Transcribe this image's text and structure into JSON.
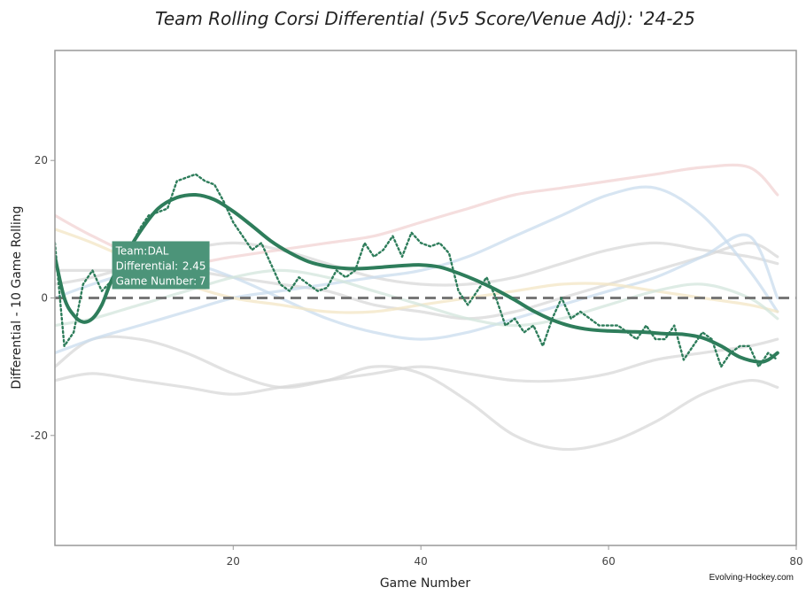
{
  "colors": {
    "team": "#2e7d5b",
    "zero_line": "#777777",
    "plot_border": "#999999",
    "tooltip_bg": "#4c9479",
    "ghost": [
      "#d8d8d8",
      "#c9dcee",
      "#f2d3d3",
      "#f3e6c4",
      "#d3e6dc"
    ]
  },
  "chart_data": {
    "type": "line",
    "title": "Team Rolling Corsi Differential (5v5 Score/Venue Adj): '24-25",
    "xlabel": "Game Number",
    "ylabel": "Differential - 10 Game Rolling",
    "xlim": [
      1,
      80
    ],
    "ylim": [
      -36,
      36
    ],
    "xticks": [
      20,
      40,
      60,
      80
    ],
    "yticks": [
      -20,
      0,
      20
    ],
    "zero_line": 0,
    "grid": false,
    "credit": "Evolving-Hockey.com",
    "highlight_team": "DAL",
    "series": [
      {
        "name": "DAL",
        "style": "smooth",
        "x": [
          1,
          2,
          3,
          4,
          5,
          6,
          7,
          8,
          10,
          12,
          14,
          16,
          18,
          20,
          22,
          24,
          26,
          28,
          30,
          32,
          34,
          36,
          38,
          40,
          42,
          44,
          46,
          48,
          50,
          52,
          54,
          56,
          58,
          60,
          62,
          64,
          66,
          68,
          70,
          72,
          74,
          76,
          77,
          78
        ],
        "values": [
          6,
          0,
          -2.5,
          -3.5,
          -3,
          -1,
          2.45,
          5,
          9.5,
          13,
          14.6,
          15,
          14.3,
          12.6,
          10.5,
          8.3,
          6.6,
          5.3,
          4.6,
          4.3,
          4.3,
          4.5,
          4.7,
          4.8,
          4.5,
          3.6,
          2.5,
          1.2,
          -0.3,
          -1.9,
          -3.2,
          -4.1,
          -4.6,
          -4.8,
          -4.9,
          -5,
          -5.2,
          -5.3,
          -5.8,
          -7,
          -8.6,
          -9.3,
          -9,
          -8
        ]
      },
      {
        "name": "DAL",
        "style": "rolling",
        "x": [
          1,
          2,
          3,
          4,
          5,
          6,
          7,
          8,
          9,
          10,
          11,
          12,
          13,
          14,
          15,
          16,
          17,
          18,
          19,
          20,
          21,
          22,
          23,
          24,
          25,
          26,
          27,
          28,
          29,
          30,
          31,
          32,
          33,
          34,
          35,
          36,
          37,
          38,
          39,
          40,
          41,
          42,
          43,
          44,
          45,
          46,
          47,
          48,
          49,
          50,
          51,
          52,
          53,
          54,
          55,
          56,
          57,
          58,
          59,
          60,
          61,
          62,
          63,
          64,
          65,
          66,
          67,
          68,
          69,
          70,
          71,
          72,
          73,
          74,
          75,
          76,
          77,
          78
        ],
        "values": [
          8,
          -7,
          -5,
          2,
          4,
          1,
          2.45,
          5,
          7,
          10,
          12,
          12.5,
          13,
          17,
          17.5,
          18,
          17,
          16.5,
          14,
          11,
          9,
          7,
          8,
          5,
          2,
          1,
          3,
          2,
          1,
          1.5,
          4,
          3,
          4,
          8,
          6,
          7,
          9,
          6,
          9.5,
          8,
          7.5,
          8,
          6.5,
          1,
          -1,
          1,
          3,
          0,
          -4,
          -3,
          -5,
          -4,
          -7,
          -3,
          0,
          -3,
          -2,
          -3,
          -4,
          -4,
          -4,
          -5,
          -6,
          -4,
          -6,
          -6,
          -4,
          -9,
          -7,
          -5,
          -6,
          -10,
          -8,
          -7,
          -7,
          -10,
          -8,
          -9
        ]
      },
      {
        "name": "",
        "style": "ghost",
        "color_index": 0,
        "x": [
          1,
          5,
          10,
          15,
          20,
          25,
          30,
          35,
          40,
          45,
          50,
          55,
          60,
          65,
          70,
          75,
          78
        ],
        "values": [
          -10,
          -6,
          -6,
          -8,
          -11,
          -13,
          -12,
          -10,
          -11,
          -15,
          -20,
          -22,
          -21,
          -18,
          -14,
          -12,
          -13
        ]
      },
      {
        "name": "",
        "style": "ghost",
        "color_index": 0,
        "x": [
          1,
          5,
          10,
          15,
          20,
          25,
          30,
          35,
          40,
          45,
          50,
          55,
          60,
          65,
          70,
          75,
          78
        ],
        "values": [
          -12,
          -11,
          -12,
          -13,
          -14,
          -13,
          -12,
          -11,
          -10,
          -11,
          -12,
          -12,
          -11,
          -9,
          -8,
          -7,
          -6
        ]
      },
      {
        "name": "",
        "style": "ghost",
        "color_index": 0,
        "x": [
          1,
          5,
          10,
          15,
          20,
          25,
          30,
          35,
          40,
          45,
          50,
          55,
          60,
          65,
          70,
          75,
          78
        ],
        "values": [
          4,
          4,
          4,
          4,
          3,
          2,
          1,
          -1,
          -2,
          -3,
          -2,
          0,
          2,
          4,
          6,
          8,
          6
        ]
      },
      {
        "name": "",
        "style": "ghost",
        "color_index": 0,
        "x": [
          1,
          5,
          10,
          15,
          20,
          25,
          30,
          35,
          40,
          45,
          50,
          55,
          60,
          65,
          70,
          75,
          78
        ],
        "values": [
          2,
          3,
          5,
          7,
          8,
          7,
          5,
          3,
          2,
          2,
          3,
          5,
          7,
          8,
          7,
          6,
          5
        ]
      },
      {
        "name": "",
        "style": "ghost",
        "color_index": 1,
        "x": [
          1,
          5,
          10,
          15,
          20,
          25,
          30,
          35,
          40,
          45,
          50,
          55,
          60,
          65,
          70,
          75,
          78
        ],
        "values": [
          -8,
          -6,
          -4,
          -2,
          0,
          1,
          2,
          3,
          4,
          6,
          9,
          12,
          15,
          16,
          12,
          4,
          -2
        ]
      },
      {
        "name": "",
        "style": "ghost",
        "color_index": 1,
        "x": [
          1,
          5,
          10,
          15,
          20,
          25,
          30,
          35,
          40,
          45,
          50,
          55,
          60,
          65,
          70,
          75,
          78
        ],
        "values": [
          0,
          2,
          4,
          5,
          3,
          0,
          -3,
          -5,
          -6,
          -5,
          -3,
          -1,
          1,
          3,
          6,
          9,
          0
        ]
      },
      {
        "name": "",
        "style": "ghost",
        "color_index": 2,
        "x": [
          1,
          5,
          10,
          15,
          20,
          25,
          30,
          35,
          40,
          45,
          50,
          55,
          60,
          65,
          70,
          75,
          78
        ],
        "values": [
          12,
          9,
          6,
          5,
          6,
          7,
          8,
          9,
          11,
          13,
          15,
          16,
          17,
          18,
          19,
          19,
          15
        ]
      },
      {
        "name": "",
        "style": "ghost",
        "color_index": 3,
        "x": [
          1,
          5,
          10,
          15,
          20,
          25,
          30,
          35,
          40,
          45,
          50,
          55,
          60,
          65,
          70,
          75,
          78
        ],
        "values": [
          10,
          8,
          5,
          2,
          0,
          -1,
          -2,
          -2,
          -1,
          0,
          1,
          2,
          2,
          1,
          0,
          -1,
          -2
        ]
      },
      {
        "name": "",
        "style": "ghost",
        "color_index": 4,
        "x": [
          1,
          5,
          10,
          15,
          20,
          25,
          30,
          35,
          40,
          45,
          50,
          55,
          60,
          65,
          70,
          75,
          78
        ],
        "values": [
          -4,
          -3,
          -1,
          1,
          3,
          4,
          3,
          1,
          -1,
          -3,
          -4,
          -3,
          -1,
          1,
          2,
          0,
          -3
        ]
      }
    ],
    "tooltip": {
      "team_label": "Team:",
      "team": "DAL",
      "diff_label": "Differential:",
      "diff": "2.45",
      "game_label": "Game Number:",
      "game": "7",
      "x": 7,
      "y": 2.45
    }
  }
}
